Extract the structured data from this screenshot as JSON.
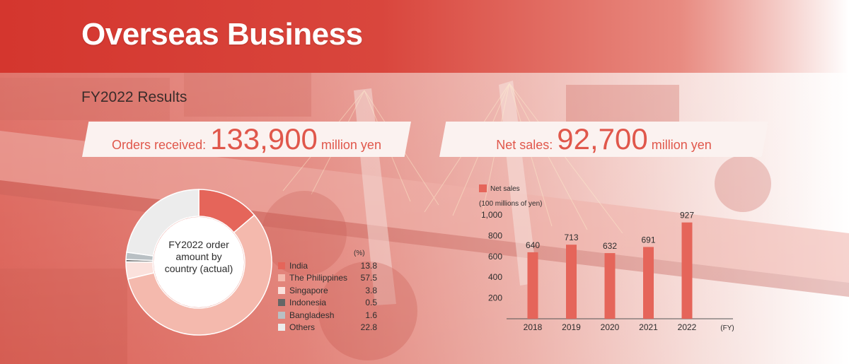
{
  "header": {
    "title": "Overseas Business"
  },
  "section": {
    "subtitle": "FY2022 Results"
  },
  "summary": {
    "orders": {
      "label": "Orders received:",
      "value": "133,900",
      "unit": "million yen"
    },
    "sales": {
      "label": "Net sales:",
      "value": "92,700",
      "unit": "million yen"
    }
  },
  "colors": {
    "accent": "#e5655a",
    "band": "#d4362e"
  },
  "chart_data": [
    {
      "type": "pie",
      "title": "FY2022 order amount by country (actual)",
      "unit": "(%)",
      "categories": [
        "India",
        "The Philippines",
        "Singapore",
        "Indonesia",
        "Bangladesh",
        "Others"
      ],
      "values": [
        13.8,
        57.5,
        3.8,
        0.5,
        1.6,
        22.8
      ],
      "value_labels": [
        "13.8",
        "57.5",
        "3.8",
        "0.5",
        "1.6",
        "22.8"
      ],
      "colors": [
        "#e5655a",
        "#f4b9ad",
        "#fbe1dc",
        "#666666",
        "#b9c0c4",
        "#ececec"
      ],
      "legend": "right"
    },
    {
      "type": "bar",
      "legend_label": "Net sales",
      "ylabel": "(100 millions of yen)",
      "xunit": "(FY)",
      "categories": [
        "2018",
        "2019",
        "2020",
        "2021",
        "2022"
      ],
      "values": [
        640,
        713,
        632,
        691,
        927
      ],
      "value_labels": [
        "640",
        "713",
        "632",
        "691",
        "927"
      ],
      "yticks": [
        "200",
        "400",
        "600",
        "800",
        "1,000"
      ],
      "ylim": [
        0,
        1000
      ],
      "color": "#e5655a",
      "grid": false
    }
  ]
}
